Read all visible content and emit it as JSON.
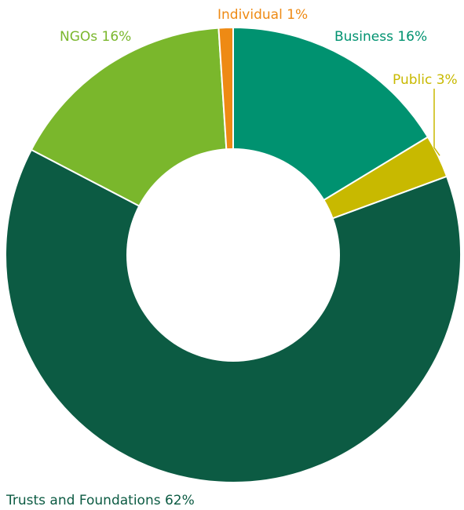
{
  "chart_data": {
    "type": "pie",
    "donut": true,
    "title": "",
    "categories": [
      "Business",
      "Public",
      "Trusts and Foundations",
      "NGOs",
      "Individual"
    ],
    "values": [
      16,
      3,
      62,
      16,
      1
    ],
    "colors": [
      "#009270",
      "#c8b900",
      "#0c5b43",
      "#7ab72c",
      "#ee8a14"
    ],
    "labels": [
      {
        "name": "Business",
        "text": "Business 16%",
        "color": "#009270"
      },
      {
        "name": "Public",
        "text": "Public 3%",
        "color": "#c8b900"
      },
      {
        "name": "Trusts and Foundations",
        "text": "Trusts and Foundations 62%",
        "color": "#0c5b43"
      },
      {
        "name": "NGOs",
        "text": "NGOs 16%",
        "color": "#7ab72c"
      },
      {
        "name": "Individual",
        "text": "Individual 1%",
        "color": "#ee8a14"
      }
    ],
    "legend": "none",
    "grid": false
  }
}
